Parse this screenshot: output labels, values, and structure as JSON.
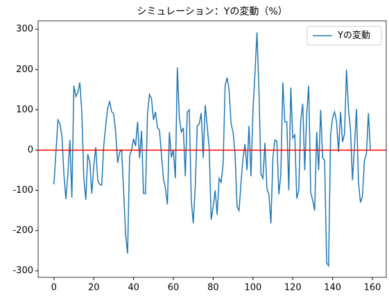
{
  "chart_data": {
    "type": "line",
    "title": "シミュレーション：Yの変動（%）",
    "x": [
      0,
      1,
      2,
      3,
      4,
      5,
      6,
      7,
      8,
      9,
      10,
      11,
      12,
      13,
      14,
      15,
      16,
      17,
      18,
      19,
      20,
      21,
      22,
      23,
      24,
      25,
      26,
      27,
      28,
      29,
      30,
      31,
      32,
      33,
      34,
      35,
      36,
      37,
      38,
      39,
      40,
      41,
      42,
      43,
      44,
      45,
      46,
      47,
      48,
      49,
      50,
      51,
      52,
      53,
      54,
      55,
      56,
      57,
      58,
      59,
      60,
      61,
      62,
      63,
      64,
      65,
      66,
      67,
      68,
      69,
      70,
      71,
      72,
      73,
      74,
      75,
      76,
      77,
      78,
      79,
      80,
      81,
      82,
      83,
      84,
      85,
      86,
      87,
      88,
      89,
      90,
      91,
      92,
      93,
      94,
      95,
      96,
      97,
      98,
      99,
      100,
      101,
      102,
      103,
      104,
      105,
      106,
      107,
      108,
      109,
      110,
      111,
      112,
      113,
      114,
      115,
      116,
      117,
      118,
      119,
      120,
      121,
      122,
      123,
      124,
      125,
      126,
      127,
      128,
      129,
      130,
      131,
      132,
      133,
      134,
      135,
      136,
      137,
      138,
      139,
      140,
      141,
      142,
      143,
      144,
      145,
      146,
      147,
      148,
      149,
      150,
      151,
      152,
      153,
      154,
      155,
      156,
      157,
      158,
      159
    ],
    "series": [
      {
        "name": "Yの変動",
        "color": "#1f77b4",
        "values": [
          -85,
          -5,
          75,
          65,
          35,
          -60,
          -122,
          -60,
          25,
          -118,
          160,
          133,
          143,
          168,
          95,
          -70,
          -123,
          -10,
          -30,
          -108,
          -40,
          7,
          -75,
          -85,
          -87,
          10,
          60,
          105,
          120,
          95,
          90,
          45,
          -32,
          -5,
          0,
          -100,
          -210,
          -257,
          -15,
          0,
          28,
          10,
          70,
          -20,
          48,
          -108,
          -108,
          90,
          138,
          128,
          75,
          95,
          55,
          50,
          -10,
          -70,
          -95,
          -135,
          45,
          -18,
          0,
          -70,
          205,
          80,
          45,
          55,
          -65,
          95,
          100,
          -125,
          -182,
          -90,
          60,
          65,
          92,
          -20,
          112,
          60,
          5,
          -173,
          -140,
          -100,
          -160,
          -70,
          -80,
          -35,
          160,
          180,
          150,
          65,
          45,
          -10,
          -140,
          -150,
          -80,
          -20,
          15,
          -50,
          60,
          -65,
          100,
          190,
          292,
          150,
          -60,
          -70,
          18,
          -95,
          -110,
          -182,
          -20,
          25,
          22,
          -110,
          -60,
          168,
          70,
          70,
          -100,
          155,
          30,
          38,
          -120,
          -100,
          75,
          115,
          -50,
          90,
          160,
          -105,
          -125,
          -150,
          45,
          -50,
          100,
          -20,
          -25,
          -280,
          -287,
          40,
          80,
          95,
          70,
          -5,
          95,
          20,
          40,
          200,
          100,
          50,
          -75,
          10,
          102,
          -80,
          -130,
          -115,
          -25,
          -10,
          92,
          0
        ]
      }
    ],
    "hline": {
      "value": 0,
      "color": "#ff0000"
    },
    "xlim": [
      -7.95,
      166.95
    ],
    "ylim": [
      -316,
      321
    ],
    "xticks": [
      0,
      20,
      40,
      60,
      80,
      100,
      120,
      140,
      160
    ],
    "yticks": [
      -300,
      -200,
      -100,
      0,
      100,
      200,
      300
    ],
    "legend": "upper right"
  }
}
